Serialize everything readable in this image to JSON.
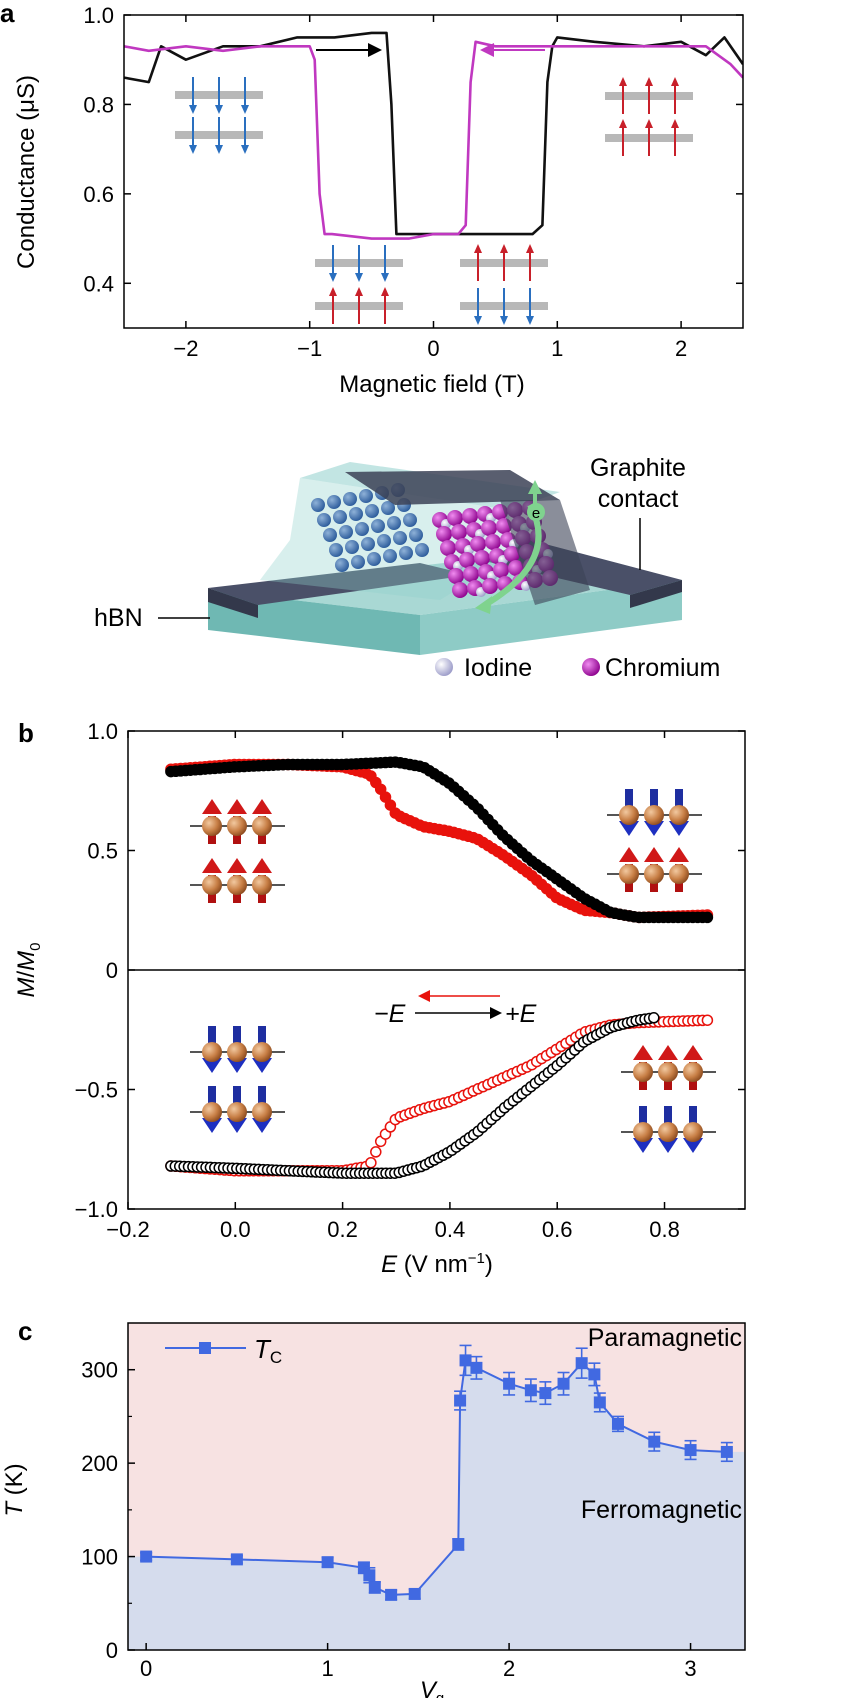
{
  "panels": {
    "a": {
      "letter": "a",
      "device": {
        "label_hbn": "hBN",
        "label_graphite_1": "Graphite",
        "label_graphite_2": "contact",
        "electron": "e",
        "legend_iodine": "Iodine",
        "legend_chromium": "Chromium",
        "iodine_color": "#a9a9d6",
        "chromium_color": "#b000b0"
      }
    },
    "b": {
      "letter": "b",
      "arrow_left": "−E",
      "arrow_right": "+E"
    },
    "c": {
      "letter": "c",
      "region_top": "Paramagnetic",
      "region_bottom": "Ferromagnetic"
    }
  },
  "chart_data": [
    {
      "id": "a",
      "type": "line",
      "xlabel": "Magnetic field (T)",
      "ylabel": "Conductance (μS)",
      "xlim": [
        -2.5,
        2.5
      ],
      "ylim": [
        0.3,
        1.0
      ],
      "xticks": [
        -2,
        -1,
        0,
        1,
        2
      ],
      "xtick_labels": [
        "−2",
        "−1",
        "0",
        "1",
        "2"
      ],
      "yticks": [
        0.4,
        0.6,
        0.8,
        1.0
      ],
      "ytick_labels": [
        "0.4",
        "0.6",
        "0.8",
        "1.0"
      ],
      "series": [
        {
          "color": "#111111",
          "direction": "sweep up",
          "x": [
            -2.5,
            -2.3,
            -2.2,
            -2.0,
            -1.7,
            -1.4,
            -1.1,
            -0.8,
            -0.5,
            -0.38,
            -0.34,
            -0.3,
            -0.2,
            0.0,
            0.3,
            0.6,
            0.8,
            0.88,
            0.92,
            0.96,
            1.0,
            1.3,
            1.7,
            2.0,
            2.2,
            2.35,
            2.5
          ],
          "y": [
            0.86,
            0.85,
            0.93,
            0.9,
            0.93,
            0.93,
            0.95,
            0.95,
            0.96,
            0.96,
            0.8,
            0.51,
            0.51,
            0.51,
            0.51,
            0.51,
            0.51,
            0.53,
            0.85,
            0.93,
            0.95,
            0.94,
            0.93,
            0.94,
            0.91,
            0.95,
            0.89
          ]
        },
        {
          "color": "#c038c0",
          "direction": "sweep down",
          "x": [
            -2.5,
            -2.3,
            -2.0,
            -1.7,
            -1.4,
            -1.0,
            -0.96,
            -0.92,
            -0.88,
            -0.82,
            -0.5,
            -0.2,
            0.0,
            0.2,
            0.26,
            0.3,
            0.34,
            0.5,
            1.0,
            1.5,
            2.0,
            2.2,
            2.4,
            2.5
          ],
          "y": [
            0.93,
            0.92,
            0.93,
            0.92,
            0.93,
            0.93,
            0.9,
            0.6,
            0.51,
            0.51,
            0.5,
            0.5,
            0.51,
            0.51,
            0.53,
            0.85,
            0.94,
            0.93,
            0.93,
            0.93,
            0.93,
            0.93,
            0.89,
            0.86
          ]
        }
      ],
      "annotations": [
        "→ sweep arrow (black)",
        "← sweep arrow (magenta)"
      ]
    },
    {
      "id": "b",
      "type": "scatter",
      "xlabel": "E (V nm⁻¹)",
      "ylabel": "M/M0",
      "xlim": [
        -0.2,
        0.95
      ],
      "ylim": [
        -1.0,
        1.0
      ],
      "xticks": [
        -0.2,
        0.0,
        0.2,
        0.4,
        0.6,
        0.8
      ],
      "xtick_labels": [
        "−0.2",
        "0.0",
        "0.2",
        "0.4",
        "0.6",
        "0.8"
      ],
      "yticks": [
        -1.0,
        -0.5,
        0,
        0.5,
        1.0
      ],
      "ytick_labels": [
        "−1.0",
        "−0.5",
        "0",
        "0.5",
        "1.0"
      ],
      "series": [
        {
          "color": "#e8120c",
          "filled": true,
          "x": [
            -0.12,
            0.0,
            0.1,
            0.2,
            0.25,
            0.27,
            0.3,
            0.35,
            0.4,
            0.45,
            0.5,
            0.55,
            0.6,
            0.65,
            0.7,
            0.75,
            0.88
          ],
          "y": [
            0.84,
            0.86,
            0.86,
            0.85,
            0.82,
            0.76,
            0.65,
            0.6,
            0.58,
            0.55,
            0.48,
            0.4,
            0.3,
            0.25,
            0.24,
            0.22,
            0.23
          ]
        },
        {
          "color": "#000000",
          "filled": true,
          "x": [
            -0.12,
            0.0,
            0.1,
            0.2,
            0.3,
            0.35,
            0.4,
            0.45,
            0.5,
            0.55,
            0.6,
            0.65,
            0.7,
            0.75,
            0.88
          ],
          "y": [
            0.83,
            0.85,
            0.86,
            0.86,
            0.87,
            0.85,
            0.78,
            0.68,
            0.56,
            0.46,
            0.38,
            0.3,
            0.24,
            0.22,
            0.22
          ]
        },
        {
          "color": "#e8120c",
          "filled": false,
          "x": [
            -0.12,
            0.0,
            0.1,
            0.2,
            0.25,
            0.27,
            0.3,
            0.35,
            0.4,
            0.45,
            0.5,
            0.55,
            0.6,
            0.65,
            0.7,
            0.75,
            0.88
          ],
          "y": [
            -0.82,
            -0.84,
            -0.84,
            -0.84,
            -0.82,
            -0.72,
            -0.62,
            -0.58,
            -0.55,
            -0.5,
            -0.45,
            -0.4,
            -0.33,
            -0.26,
            -0.23,
            -0.22,
            -0.21
          ]
        },
        {
          "color": "#000000",
          "filled": false,
          "x": [
            -0.12,
            0.0,
            0.1,
            0.2,
            0.3,
            0.35,
            0.4,
            0.45,
            0.5,
            0.55,
            0.6,
            0.65,
            0.7,
            0.75,
            0.78
          ],
          "y": [
            -0.82,
            -0.83,
            -0.84,
            -0.85,
            -0.85,
            -0.82,
            -0.76,
            -0.68,
            -0.58,
            -0.49,
            -0.4,
            -0.3,
            -0.24,
            -0.21,
            -0.2
          ]
        }
      ]
    },
    {
      "id": "c",
      "type": "line",
      "xlabel": "Vg",
      "ylabel": "T (K)",
      "xlim": [
        -0.1,
        3.3
      ],
      "ylim": [
        0,
        350
      ],
      "xticks": [
        0,
        1,
        2,
        3
      ],
      "xtick_labels": [
        "0",
        "1",
        "2",
        "3"
      ],
      "yticks": [
        0,
        100,
        200,
        300
      ],
      "ytick_labels": [
        "0",
        "100",
        "200",
        "300"
      ],
      "legend": "top-left",
      "series": [
        {
          "name": "T_C",
          "name_main": "T",
          "name_sub": "C",
          "color": "#4169e1",
          "x": [
            0.0,
            0.5,
            1.0,
            1.2,
            1.23,
            1.26,
            1.35,
            1.48,
            1.72,
            1.73,
            1.76,
            1.82,
            2.0,
            2.12,
            2.2,
            2.3,
            2.4,
            2.47,
            2.5,
            2.6,
            2.8,
            3.0,
            3.2
          ],
          "y": [
            100,
            97,
            94,
            88,
            80,
            67,
            59,
            60,
            113,
            267,
            310,
            302,
            285,
            278,
            275,
            285,
            307,
            295,
            265,
            242,
            223,
            214,
            212
          ],
          "err": [
            4,
            4,
            5,
            6,
            8,
            6,
            5,
            5,
            6,
            10,
            16,
            12,
            12,
            12,
            12,
            12,
            16,
            12,
            10,
            8,
            10,
            10,
            10
          ]
        }
      ],
      "regions": {
        "upper_color": "#f7e2e2",
        "lower_color": "#d5dced"
      }
    }
  ]
}
